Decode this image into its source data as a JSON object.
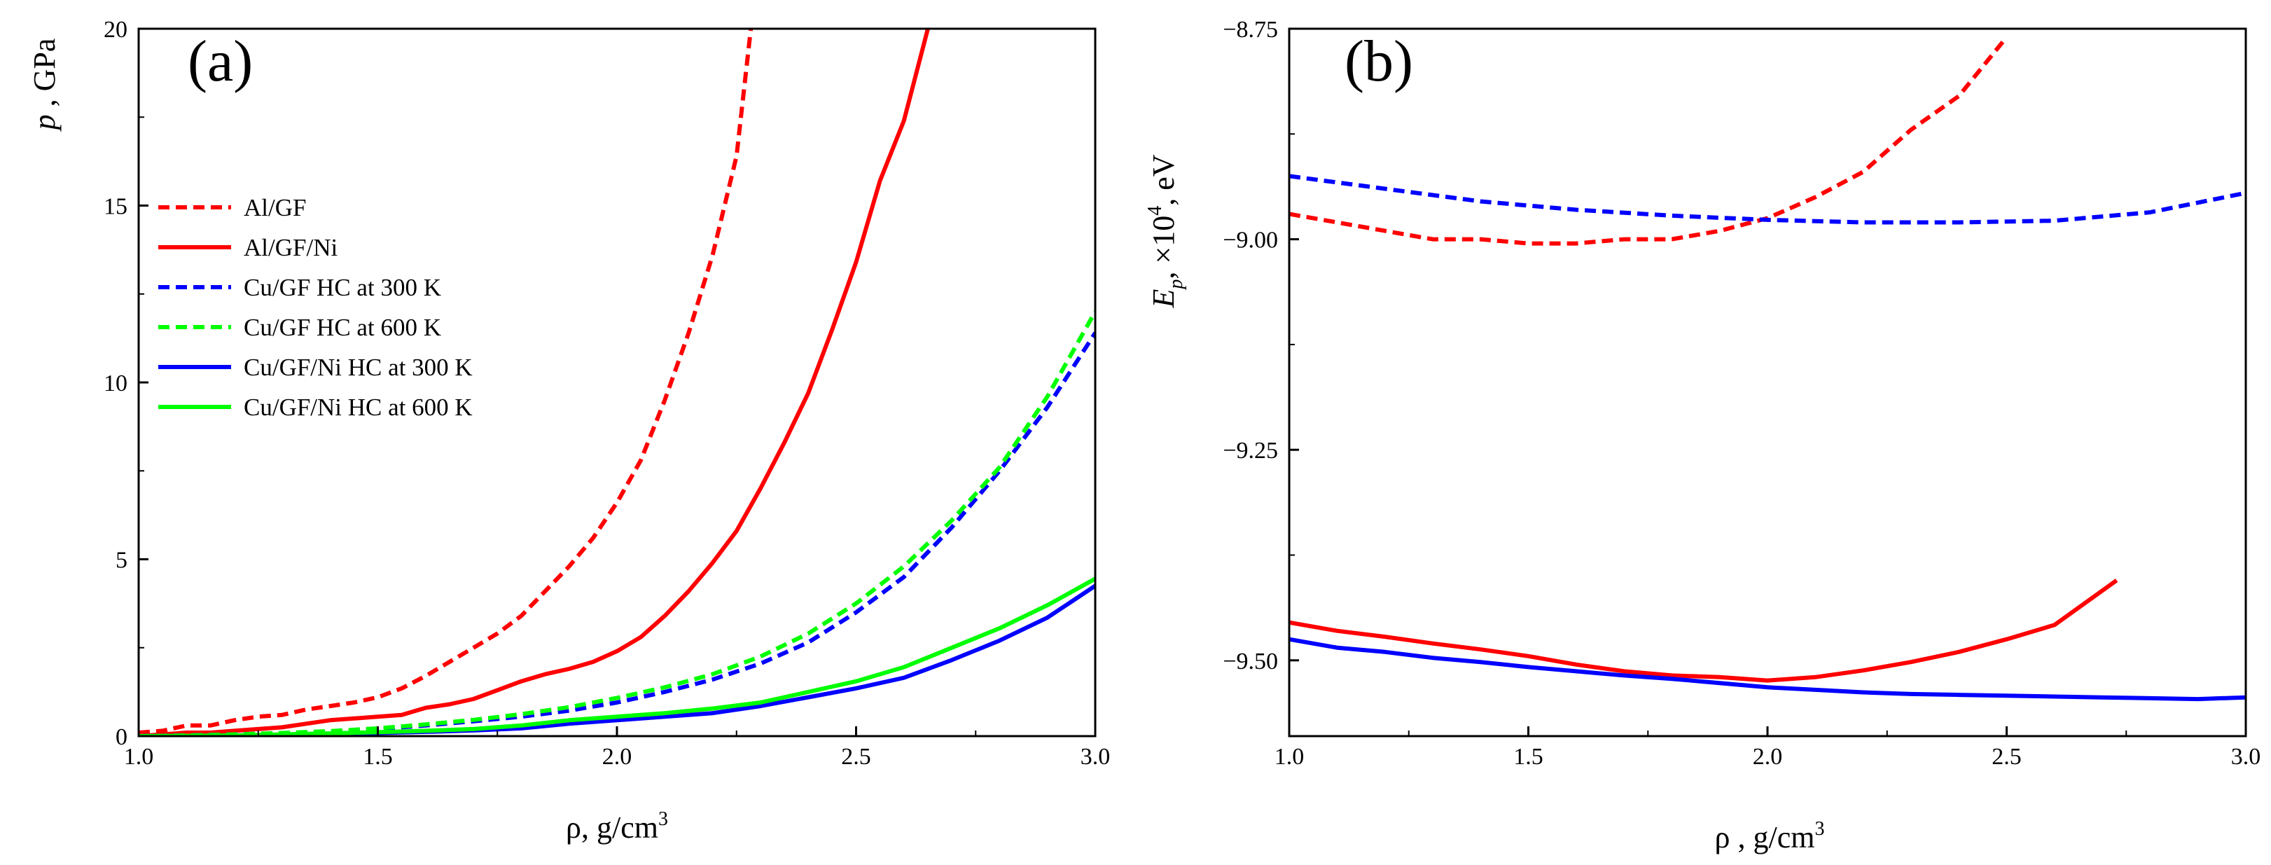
{
  "chart_data": [
    {
      "type": "line",
      "panel_label": "(a)",
      "xlabel": "ρ, g/cm",
      "xlabel_superscript": "3",
      "ylabel_symbol": "p",
      "ylabel_rest": " , GPa",
      "xlim": [
        1.0,
        3.0
      ],
      "ylim": [
        0,
        20
      ],
      "xticks": [
        1.0,
        1.5,
        2.0,
        2.5,
        3.0
      ],
      "xtick_labels": [
        "1.0",
        "1.5",
        "2.0",
        "2.5",
        "3.0"
      ],
      "yticks": [
        0,
        5,
        10,
        15,
        20
      ],
      "ytick_labels": [
        "0",
        "5",
        "10",
        "15",
        "20"
      ],
      "legend_position": "left",
      "series": [
        {
          "name": "Al/GF",
          "color": "#ff0000",
          "dash": "dashed",
          "x": [
            1.0,
            1.05,
            1.1,
            1.15,
            1.2,
            1.25,
            1.3,
            1.35,
            1.4,
            1.45,
            1.5,
            1.55,
            1.6,
            1.65,
            1.7,
            1.75,
            1.8,
            1.85,
            1.9,
            1.95,
            2.0,
            2.05,
            2.1,
            2.15,
            2.2,
            2.25,
            2.28
          ],
          "y": [
            0.1,
            0.15,
            0.3,
            0.3,
            0.45,
            0.55,
            0.6,
            0.75,
            0.85,
            0.95,
            1.1,
            1.35,
            1.7,
            2.1,
            2.5,
            2.9,
            3.4,
            4.1,
            4.8,
            5.6,
            6.6,
            7.8,
            9.5,
            11.4,
            13.6,
            16.4,
            20.0
          ]
        },
        {
          "name": "Al/GF/Ni",
          "color": "#ff0000",
          "dash": "solid",
          "x": [
            1.0,
            1.05,
            1.1,
            1.15,
            1.2,
            1.25,
            1.3,
            1.35,
            1.4,
            1.45,
            1.5,
            1.55,
            1.6,
            1.65,
            1.7,
            1.75,
            1.8,
            1.85,
            1.9,
            1.95,
            2.0,
            2.05,
            2.1,
            2.15,
            2.2,
            2.25,
            2.3,
            2.35,
            2.4,
            2.45,
            2.5,
            2.55,
            2.6,
            2.65
          ],
          "y": [
            0.0,
            0.05,
            0.1,
            0.1,
            0.15,
            0.2,
            0.25,
            0.35,
            0.45,
            0.5,
            0.55,
            0.6,
            0.8,
            0.9,
            1.05,
            1.3,
            1.55,
            1.75,
            1.9,
            2.1,
            2.4,
            2.8,
            3.4,
            4.1,
            4.9,
            5.8,
            7.0,
            8.3,
            9.7,
            11.5,
            13.4,
            15.7,
            17.4,
            20.0
          ]
        },
        {
          "name": "Cu/GF HC at 300 K",
          "color": "#0000ff",
          "dash": "dashed",
          "x": [
            1.0,
            1.1,
            1.2,
            1.3,
            1.4,
            1.5,
            1.6,
            1.7,
            1.8,
            1.9,
            2.0,
            2.1,
            2.2,
            2.3,
            2.4,
            2.5,
            2.6,
            2.7,
            2.8,
            2.9,
            3.0
          ],
          "y": [
            0.0,
            0.02,
            0.05,
            0.08,
            0.12,
            0.2,
            0.3,
            0.42,
            0.55,
            0.72,
            0.95,
            1.25,
            1.6,
            2.05,
            2.65,
            3.5,
            4.5,
            5.9,
            7.5,
            9.3,
            11.4
          ]
        },
        {
          "name": "Cu/GF HC at 600 K",
          "color": "#00ff00",
          "dash": "dashed",
          "x": [
            1.0,
            1.1,
            1.2,
            1.3,
            1.4,
            1.5,
            1.6,
            1.7,
            1.8,
            1.9,
            2.0,
            2.1,
            2.2,
            2.3,
            2.4,
            2.5,
            2.6,
            2.7,
            2.8,
            2.9,
            3.0
          ],
          "y": [
            0.0,
            0.02,
            0.05,
            0.09,
            0.14,
            0.22,
            0.33,
            0.46,
            0.62,
            0.82,
            1.08,
            1.38,
            1.75,
            2.25,
            2.9,
            3.75,
            4.8,
            6.1,
            7.6,
            9.6,
            12.0
          ]
        },
        {
          "name": "Cu/GF/Ni HC at 300 K",
          "color": "#0000ff",
          "dash": "solid",
          "x": [
            1.0,
            1.1,
            1.2,
            1.3,
            1.4,
            1.5,
            1.6,
            1.7,
            1.8,
            1.9,
            2.0,
            2.1,
            2.2,
            2.3,
            2.4,
            2.5,
            2.6,
            2.7,
            2.8,
            2.9,
            3.0
          ],
          "y": [
            0.0,
            0.01,
            0.02,
            0.04,
            0.06,
            0.09,
            0.12,
            0.16,
            0.22,
            0.35,
            0.45,
            0.55,
            0.65,
            0.85,
            1.1,
            1.35,
            1.65,
            2.15,
            2.7,
            3.35,
            4.25
          ]
        },
        {
          "name": "Cu/GF/Ni HC at 600 K",
          "color": "#00ff00",
          "dash": "solid",
          "x": [
            1.0,
            1.1,
            1.2,
            1.3,
            1.4,
            1.5,
            1.6,
            1.7,
            1.8,
            1.9,
            2.0,
            2.1,
            2.2,
            2.3,
            2.4,
            2.5,
            2.6,
            2.7,
            2.8,
            2.9,
            3.0
          ],
          "y": [
            0.0,
            0.01,
            0.02,
            0.05,
            0.08,
            0.11,
            0.15,
            0.2,
            0.3,
            0.45,
            0.55,
            0.65,
            0.78,
            0.95,
            1.25,
            1.55,
            1.95,
            2.5,
            3.05,
            3.7,
            4.45
          ]
        }
      ]
    },
    {
      "type": "line",
      "panel_label": "(b)",
      "xlabel": "ρ , g/cm",
      "xlabel_superscript": "3",
      "ylabel_symbol": "E",
      "ylabel_subscript": "p",
      "ylabel_mid": ", ×10",
      "ylabel_superscript": "4",
      "ylabel_end": ", eV",
      "xlim": [
        1.0,
        3.0
      ],
      "ylim": [
        -9.59,
        -8.75
      ],
      "xticks": [
        1.0,
        1.5,
        2.0,
        2.5,
        3.0
      ],
      "xtick_labels": [
        "1.0",
        "1.5",
        "2.0",
        "2.5",
        "3.0"
      ],
      "yticks": [
        -8.75,
        -9.0,
        -9.25,
        -9.5
      ],
      "ytick_labels": [
        "−8.75",
        "−9.00",
        "−9.25",
        "−9.50"
      ],
      "series": [
        {
          "color": "#ff0000",
          "dash": "dashed",
          "x": [
            1.0,
            1.1,
            1.2,
            1.3,
            1.4,
            1.5,
            1.6,
            1.7,
            1.8,
            1.9,
            2.0,
            2.1,
            2.2,
            2.3,
            2.4,
            2.5
          ],
          "y": [
            -8.97,
            -8.98,
            -8.99,
            -9.0,
            -9.0,
            -9.005,
            -9.005,
            -9.0,
            -9.0,
            -8.99,
            -8.975,
            -8.95,
            -8.92,
            -8.87,
            -8.83,
            -8.76
          ]
        },
        {
          "color": "#0000ff",
          "dash": "dashed",
          "x": [
            1.0,
            1.2,
            1.4,
            1.6,
            1.8,
            2.0,
            2.2,
            2.4,
            2.6,
            2.8,
            3.0
          ],
          "y": [
            -8.925,
            -8.94,
            -8.955,
            -8.965,
            -8.972,
            -8.977,
            -8.98,
            -8.98,
            -8.978,
            -8.968,
            -8.945
          ]
        },
        {
          "color": "#ff0000",
          "dash": "solid",
          "x": [
            1.0,
            1.1,
            1.2,
            1.3,
            1.4,
            1.5,
            1.6,
            1.7,
            1.8,
            1.9,
            2.0,
            2.1,
            2.2,
            2.3,
            2.4,
            2.5,
            2.6,
            2.73
          ],
          "y": [
            -9.455,
            -9.465,
            -9.472,
            -9.48,
            -9.487,
            -9.495,
            -9.505,
            -9.513,
            -9.518,
            -9.52,
            -9.524,
            -9.52,
            -9.512,
            -9.502,
            -9.49,
            -9.475,
            -9.458,
            -9.405
          ]
        },
        {
          "color": "#0000ff",
          "dash": "solid",
          "x": [
            1.0,
            1.1,
            1.2,
            1.3,
            1.4,
            1.5,
            1.6,
            1.7,
            1.8,
            1.9,
            2.0,
            2.1,
            2.2,
            2.3,
            2.4,
            2.5,
            2.6,
            2.7,
            2.8,
            2.9,
            3.0
          ],
          "y": [
            -9.475,
            -9.485,
            -9.49,
            -9.497,
            -9.502,
            -9.508,
            -9.513,
            -9.518,
            -9.522,
            -9.527,
            -9.532,
            -9.535,
            -9.538,
            -9.54,
            -9.541,
            -9.542,
            -9.543,
            -9.544,
            -9.545,
            -9.546,
            -9.544
          ]
        }
      ]
    }
  ]
}
